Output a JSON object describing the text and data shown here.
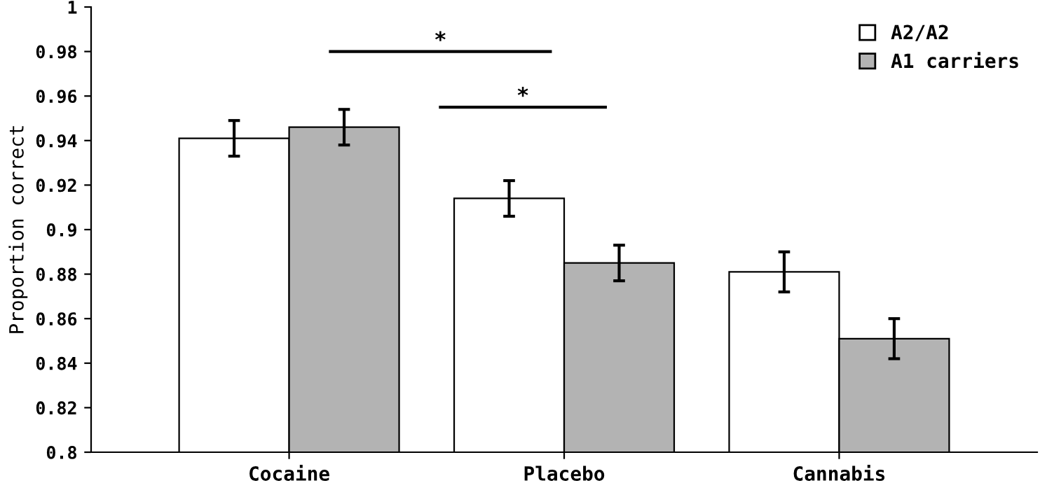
{
  "chart_data": {
    "type": "bar",
    "ylabel": "Proportion correct",
    "categories": [
      "Cocaine",
      "Placebo",
      "Cannabis"
    ],
    "series": [
      {
        "name": "A2/A2",
        "color": "#ffffff",
        "values": [
          0.941,
          0.914,
          0.881
        ],
        "errors": [
          0.008,
          0.008,
          0.009
        ]
      },
      {
        "name": "A1 carriers",
        "color": "#b3b3b3",
        "values": [
          0.946,
          0.885,
          0.851
        ],
        "errors": [
          0.008,
          0.008,
          0.009
        ]
      }
    ],
    "ylim": [
      0.8,
      1.0
    ],
    "yticks": [
      {
        "value": 0.8,
        "label": "0.8"
      },
      0.82,
      0.84,
      0.86,
      0.88,
      {
        "value": 0.9,
        "label": "0.9"
      },
      0.92,
      0.94,
      0.96,
      0.98,
      {
        "value": 1.0,
        "label": "1"
      }
    ],
    "annotations": [
      "*",
      "*"
    ],
    "grid": false,
    "legend": "top right"
  }
}
